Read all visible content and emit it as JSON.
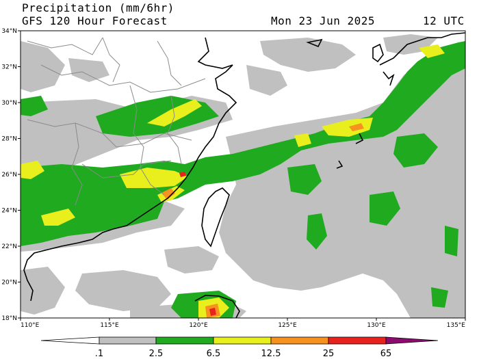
{
  "header": {
    "title": "Precipitation (mm/6hr)",
    "model": "GFS 120 Hour Forecast",
    "date": "Mon 23 Jun 2025",
    "time": "12 UTC"
  },
  "map": {
    "lon_range": [
      110,
      135
    ],
    "lat_range": [
      18,
      34
    ],
    "lat_labels": [
      "34°N",
      "32°N",
      "30°N",
      "28°N",
      "26°N",
      "24°N",
      "22°N",
      "20°N",
      "18°N"
    ],
    "lon_labels": [
      "110°E",
      "115°E",
      "120°E",
      "125°E",
      "130°E",
      "135°E"
    ]
  },
  "colorbar": {
    "labels": [
      ".1",
      "2.5",
      "6.5",
      "12.5",
      "25",
      "65"
    ],
    "colors": {
      "lt_0_1": "#ffffff",
      "r0_1_2_5": "#c0c0c0",
      "r2_5_6_5": "#1faa1f",
      "r6_5_12_5": "#e8ef1c",
      "r12_5_25": "#f7921e",
      "r25_65": "#e8231e",
      "gt_65": "#8b0c6e"
    }
  },
  "colors": {
    "coast": "#000000",
    "borders": "#8a8a8a",
    "frame": "#000000"
  }
}
